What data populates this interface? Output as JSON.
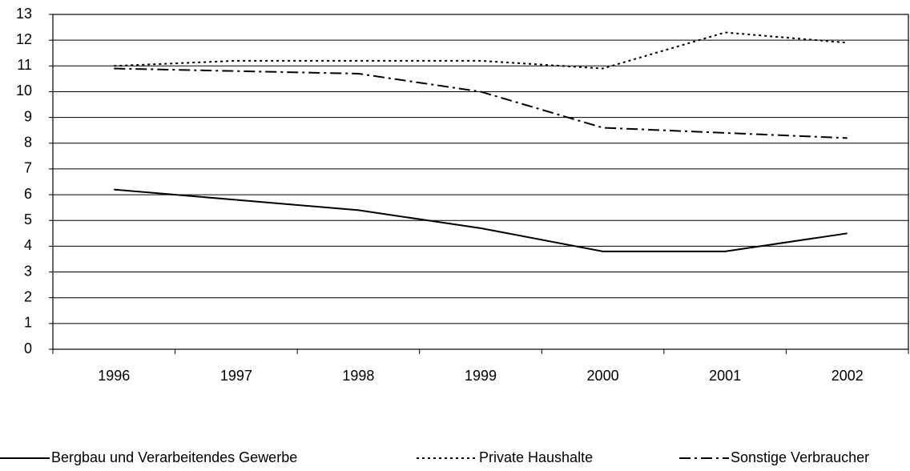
{
  "chart_data": {
    "type": "line",
    "categories": [
      "1996",
      "1997",
      "1998",
      "1999",
      "2000",
      "2001",
      "2002"
    ],
    "series": [
      {
        "name": "Bergbau und Verarbeitendes Gewerbe",
        "color": "#000000",
        "linestyle": "solid",
        "values": [
          6.2,
          5.8,
          5.4,
          4.7,
          3.8,
          3.8,
          4.5
        ]
      },
      {
        "name": "Private Haushalte",
        "color": "#000000",
        "linestyle": "dotted",
        "values": [
          11.0,
          11.2,
          11.2,
          11.2,
          10.9,
          12.3,
          11.9
        ]
      },
      {
        "name": "Sonstige Verbraucher",
        "color": "#000000",
        "linestyle": "dashdot",
        "values": [
          10.9,
          10.8,
          10.7,
          10.0,
          8.6,
          8.4,
          8.2
        ]
      }
    ],
    "ylim": [
      0,
      13
    ],
    "yticks": [
      0,
      1,
      2,
      3,
      4,
      5,
      6,
      7,
      8,
      9,
      10,
      11,
      12,
      13
    ],
    "grid": true,
    "legend": "bottom"
  }
}
